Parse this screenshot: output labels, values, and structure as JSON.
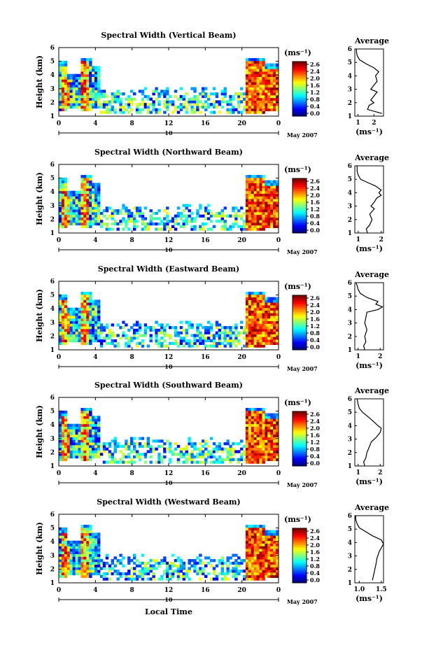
{
  "figure": {
    "xlabel": "Local Time",
    "date_mark": "10",
    "date_text": "May 2007",
    "ylabel": "Height (km)",
    "unit_label": "(ms⁻¹)",
    "avg_title": "Average",
    "avg_xlabel": "(ms⁻¹)"
  },
  "panels": [
    {
      "title": "Spectral Width (Vertical Beam)",
      "cb_ticks": [
        "2.6",
        "2.4",
        "2.0",
        "1.6",
        "1.2",
        "0.8",
        "0.4",
        "0.0"
      ],
      "avg_xticks": [
        "1",
        "2"
      ],
      "avg_xlim": [
        0.8,
        2.6
      ]
    },
    {
      "title": "Spectral Width (Northward Beam)",
      "cb_ticks": [
        "2.6",
        "2.4",
        "2.0",
        "1.6",
        "1.2",
        "0.8",
        "0.4",
        "0.0"
      ],
      "avg_xticks": [
        "1",
        "2"
      ],
      "avg_xlim": [
        0.85,
        2.1
      ]
    },
    {
      "title": "Spectral Width (Eastward Beam)",
      "cb_ticks": [
        "2.6",
        "2.4",
        "2.0",
        "1.6",
        "1.2",
        "0.8",
        "0.4",
        "0.0"
      ],
      "avg_xticks": [
        "1",
        "2"
      ],
      "avg_xlim": [
        0.85,
        2.15
      ]
    },
    {
      "title": "Spectral Width (Southward Beam)",
      "cb_ticks": [
        "2.6",
        "2.4",
        "2.0",
        "1.6",
        "1.2",
        "0.8",
        "0.4",
        "0.0"
      ],
      "avg_xticks": [
        "1",
        "2"
      ],
      "avg_xlim": [
        0.85,
        2.15
      ]
    },
    {
      "title": "Spectral Width (Westward Beam)",
      "cb_ticks": [
        "2.6",
        "2.4",
        "2.0",
        "1.6",
        "1.2",
        "0.8",
        "0.4",
        "0.0"
      ],
      "avg_xticks": [
        "1.0",
        "1.5"
      ],
      "avg_xlim": [
        0.9,
        1.55
      ]
    }
  ],
  "chart_data": {
    "type": "heatmap",
    "x_ticks": [
      "0",
      "4",
      "8",
      "12",
      "16",
      "20",
      "0"
    ],
    "x_range_hours": [
      0,
      24
    ],
    "y_ticks": [
      "1",
      "2",
      "3",
      "4",
      "5",
      "6"
    ],
    "ylim": [
      1,
      6
    ],
    "colorbar_range": [
      0.0,
      2.6
    ],
    "avg_y_ticks": [
      "1",
      "2",
      "3",
      "4",
      "5",
      "6"
    ],
    "average_profiles": [
      {
        "height": [
          1.2,
          1.5,
          1.8,
          2.0,
          2.2,
          2.5,
          2.8,
          3.0,
          3.3,
          3.6,
          4.0,
          4.3,
          4.6,
          4.9,
          5.2,
          5.5,
          5.8,
          6.0
        ],
        "width": [
          2.5,
          1.6,
          1.7,
          2.0,
          1.8,
          2.0,
          2.2,
          1.8,
          2.0,
          2.2,
          2.1,
          2.3,
          2.0,
          1.5,
          1.1,
          0.95,
          0.9,
          0.9
        ]
      },
      {
        "height": [
          1.0,
          1.3,
          1.6,
          2.0,
          2.4,
          2.8,
          3.0,
          3.3,
          3.6,
          3.8,
          4.0,
          4.2,
          4.5,
          4.8,
          5.0,
          5.3,
          5.6,
          6.0
        ],
        "width": [
          1.4,
          1.35,
          1.5,
          1.6,
          1.5,
          1.7,
          1.55,
          1.7,
          1.8,
          2.0,
          1.9,
          2.0,
          1.75,
          1.35,
          1.1,
          1.0,
          0.95,
          0.95
        ]
      },
      {
        "height": [
          1.0,
          1.3,
          1.6,
          2.0,
          2.5,
          3.0,
          3.4,
          3.8,
          4.0,
          4.2,
          4.4,
          4.6,
          4.9,
          5.2,
          5.5,
          5.8,
          6.0
        ],
        "width": [
          1.3,
          1.25,
          1.35,
          1.3,
          1.4,
          1.3,
          1.35,
          1.4,
          1.9,
          2.1,
          1.8,
          1.9,
          1.4,
          1.1,
          1.0,
          0.95,
          0.9
        ]
      },
      {
        "height": [
          1.0,
          1.3,
          1.6,
          2.0,
          2.4,
          2.8,
          3.1,
          3.5,
          3.8,
          4.0,
          4.3,
          4.6,
          5.0,
          5.3,
          5.6,
          6.0
        ],
        "width": [
          1.3,
          1.25,
          1.35,
          1.4,
          1.5,
          1.6,
          1.8,
          2.0,
          2.05,
          1.9,
          1.7,
          1.5,
          1.2,
          1.05,
          1.0,
          0.95
        ]
      },
      {
        "height": [
          1.2,
          1.5,
          1.8,
          2.1,
          2.4,
          2.8,
          3.0,
          3.3,
          3.6,
          3.9,
          4.2,
          4.5,
          4.8,
          5.1,
          5.4,
          5.7,
          6.0
        ],
        "width": [
          1.3,
          1.32,
          1.34,
          1.36,
          1.38,
          1.4,
          1.42,
          1.45,
          1.5,
          1.55,
          1.5,
          1.3,
          1.15,
          1.0,
          0.95,
          0.92,
          0.92
        ]
      }
    ]
  }
}
